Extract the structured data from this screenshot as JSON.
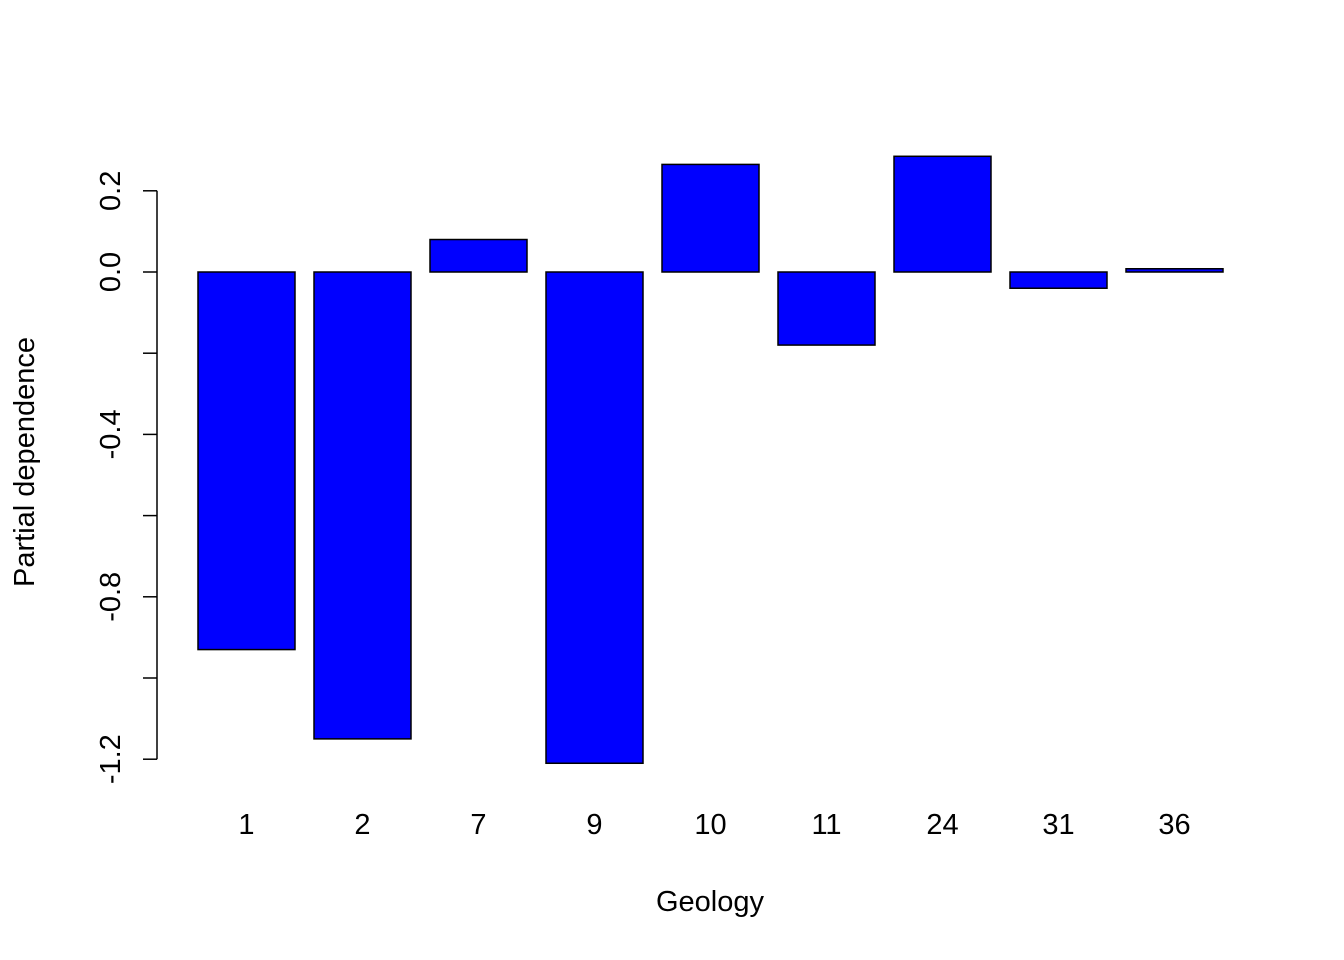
{
  "chart_data": {
    "type": "bar",
    "xlabel": "Geology",
    "ylabel": "Partial dependence",
    "categories": [
      "1",
      "2",
      "7",
      "9",
      "10",
      "11",
      "24",
      "31",
      "36"
    ],
    "values": [
      -0.93,
      -1.15,
      0.08,
      -1.21,
      0.265,
      -0.18,
      0.285,
      -0.04,
      0.008
    ],
    "yticks": [
      0.2,
      0.0,
      -0.2,
      -0.4,
      -0.6,
      -0.8,
      -1.0,
      -1.2
    ],
    "ytick_labels": [
      "0.2",
      "0.0",
      "",
      "-0.4",
      "",
      "-0.8",
      "",
      "-1.2"
    ],
    "ylim": [
      -1.2,
      0.2
    ],
    "bar_color": "#0000ff",
    "bar_edge_color": "#000000",
    "grid": false,
    "legend": "none"
  }
}
